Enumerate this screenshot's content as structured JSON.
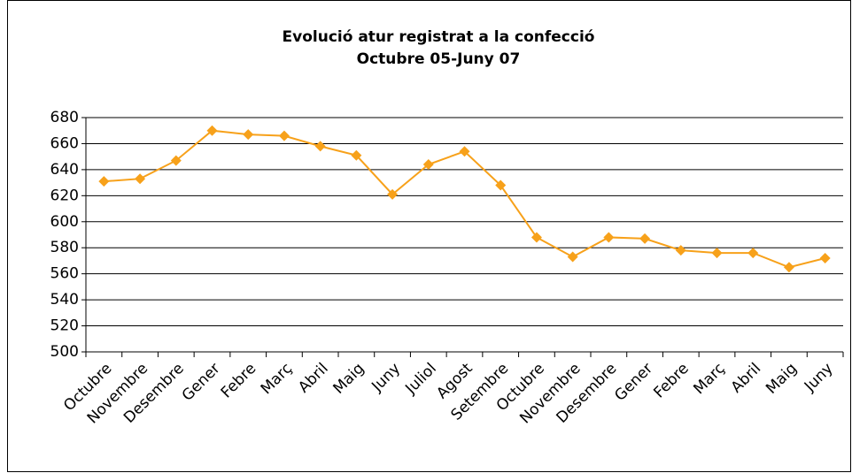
{
  "chart_data": {
    "type": "line",
    "title": "Evolució atur registrat a la confecció",
    "subtitle": "Octubre 05-Juny 07",
    "categories": [
      "Octubre",
      "Novembre",
      "Desembre",
      "Gener",
      "Febre",
      "Març",
      "Abril",
      "Maig",
      "Juny",
      "Juliol",
      "Agost",
      "Setembre",
      "Octubre",
      "Novembre",
      "Desembre",
      "Gener",
      "Febre",
      "Març",
      "Abril",
      "Maig",
      "Juny"
    ],
    "values": [
      631,
      633,
      647,
      670,
      667,
      666,
      658,
      651,
      621,
      644,
      654,
      628,
      588,
      573,
      588,
      587,
      578,
      576,
      576,
      565,
      572
    ],
    "color": "#f7a11a",
    "ylim": [
      500,
      680
    ],
    "yticks": [
      500,
      520,
      540,
      560,
      580,
      600,
      620,
      640,
      660,
      680
    ],
    "grid": true
  }
}
